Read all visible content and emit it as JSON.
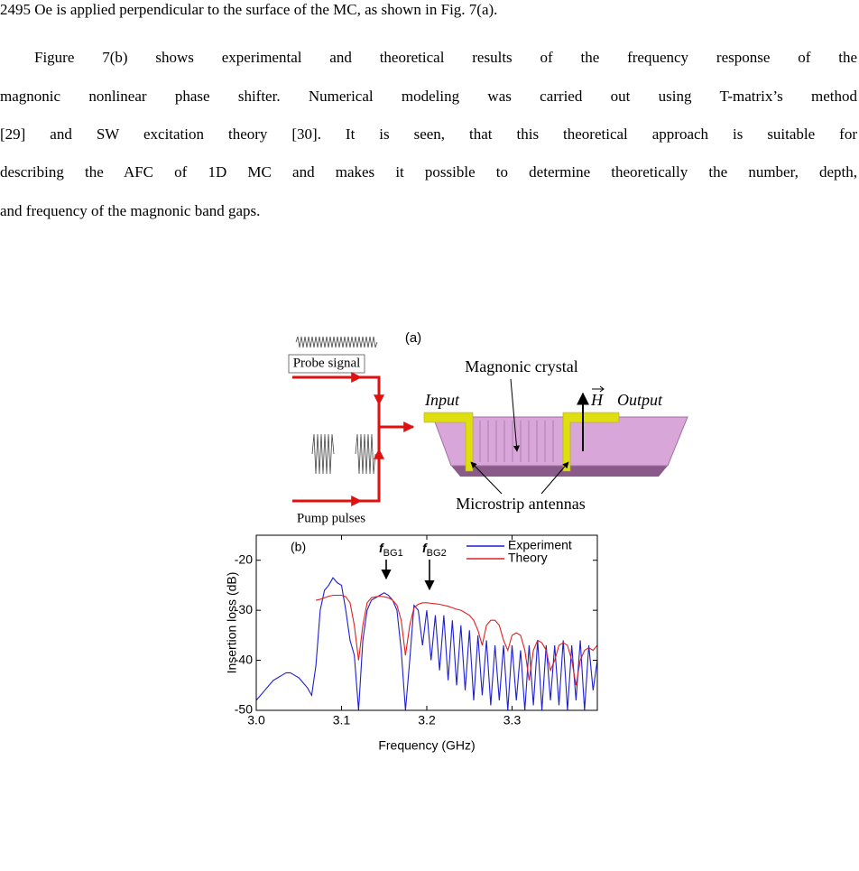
{
  "paragraphs": [
    [
      "2495 Oe is applied perpendicular to the surface of the MC, as shown in Fig. 7(a)."
    ],
    [
      "Figure 7(b) shows experimental and theoretical results of the frequency response of the",
      "magnonic nonlinear phase shifter. Numerical modeling was carried out using T-matrix’s method",
      "[29] and SW excitation theory [30]. It is seen, that this theoretical approach is suitable for",
      "describing the AFC of 1D MC and makes it possible to determine theoretically the number, depth,",
      "and frequency of the magnonic band gaps."
    ]
  ],
  "diagram": {
    "panel_label": "(a)",
    "probe": "Probe signal",
    "pump": "Pump pulses",
    "crystal": "Magnonic crystal",
    "input": "Input",
    "output": "Output",
    "field": "H",
    "antennas": "Microstrip antennas"
  },
  "chart_data": {
    "type": "line",
    "panel_label": "(b)",
    "xlabel": "Frequency (GHz)",
    "ylabel": "Insertion loss (dB)",
    "annotations": [
      {
        "text": "f",
        "subscript": "BG1"
      },
      {
        "text": "f",
        "subscript": "BG2"
      }
    ],
    "xlim": [
      3.0,
      3.4
    ],
    "ylim": [
      -50,
      -15
    ],
    "xticks": [
      {
        "value": 3.0,
        "label": "3.0"
      },
      {
        "value": 3.1,
        "label": "3.1"
      },
      {
        "value": 3.2,
        "label": "3.2"
      },
      {
        "value": 3.3,
        "label": "3.3"
      }
    ],
    "yticks": [
      -50,
      -40,
      -30,
      -20
    ],
    "legend": "upper right",
    "x": [
      3.0,
      3.005,
      3.01,
      3.015,
      3.02,
      3.025,
      3.03,
      3.035,
      3.04,
      3.045,
      3.05,
      3.055,
      3.06,
      3.065,
      3.07,
      3.075,
      3.08,
      3.085,
      3.09,
      3.095,
      3.1,
      3.105,
      3.11,
      3.115,
      3.12,
      3.125,
      3.13,
      3.135,
      3.14,
      3.145,
      3.15,
      3.155,
      3.16,
      3.165,
      3.17,
      3.175,
      3.18,
      3.185,
      3.19,
      3.195,
      3.2,
      3.205,
      3.21,
      3.215,
      3.22,
      3.225,
      3.23,
      3.235,
      3.24,
      3.245,
      3.25,
      3.255,
      3.26,
      3.265,
      3.27,
      3.275,
      3.28,
      3.285,
      3.29,
      3.295,
      3.3,
      3.305,
      3.31,
      3.315,
      3.32,
      3.325,
      3.33,
      3.335,
      3.34,
      3.345,
      3.35,
      3.355,
      3.36,
      3.365,
      3.37,
      3.375,
      3.38,
      3.385,
      3.39,
      3.395,
      3.4
    ],
    "series": [
      {
        "name": "Experiment",
        "color": "#1f1fd0",
        "values": [
          -48,
          -47,
          -46,
          -45,
          -44,
          -43.5,
          -43,
          -42.5,
          -42.5,
          -43,
          -43.5,
          -44.5,
          -45.5,
          -47,
          -41,
          -30,
          -26,
          -25,
          -23.5,
          -24.5,
          -25,
          -30,
          -36,
          -39,
          -50,
          -36,
          -30,
          -28,
          -27.5,
          -27,
          -26.5,
          -27,
          -28,
          -30,
          -38,
          -50,
          -40,
          -29,
          -30,
          -37,
          -30,
          -40,
          -31,
          -42,
          -31,
          -44,
          -32,
          -45,
          -33,
          -46,
          -34,
          -48,
          -35,
          -47,
          -36,
          -49,
          -37,
          -48,
          -37,
          -50,
          -37,
          -48,
          -38,
          -50,
          -37,
          -49,
          -36,
          -50,
          -37,
          -48,
          -37,
          -49,
          -36,
          -50,
          -37,
          -48,
          -36,
          -50,
          -37,
          -46,
          -40
        ]
      },
      {
        "name": "Theory",
        "color": "#e02020",
        "values": [
          null,
          null,
          null,
          null,
          null,
          null,
          null,
          null,
          null,
          null,
          null,
          null,
          null,
          null,
          -28,
          -27.8,
          -27.5,
          -27.2,
          -27,
          -27,
          -27,
          -27.3,
          -28.5,
          -33,
          -40,
          -33,
          -28.5,
          -27.5,
          -27.3,
          -27.2,
          -27.3,
          -27.5,
          -28,
          -29,
          -32,
          -39,
          -33,
          -29.5,
          -28.8,
          -28.5,
          -28.5,
          -28.6,
          -28.7,
          -28.8,
          -29,
          -29.2,
          -29.5,
          -29.8,
          -30,
          -30.5,
          -31,
          -32,
          -34,
          -37,
          -33,
          -32,
          -32,
          -33,
          -36,
          -38,
          -35,
          -34.5,
          -35,
          -38,
          -44,
          -38,
          -36,
          -36.5,
          -38,
          -42,
          -40,
          -37,
          -36.5,
          -37,
          -40,
          -45,
          -40,
          -38,
          -37.5,
          -38,
          -37
        ]
      }
    ]
  }
}
